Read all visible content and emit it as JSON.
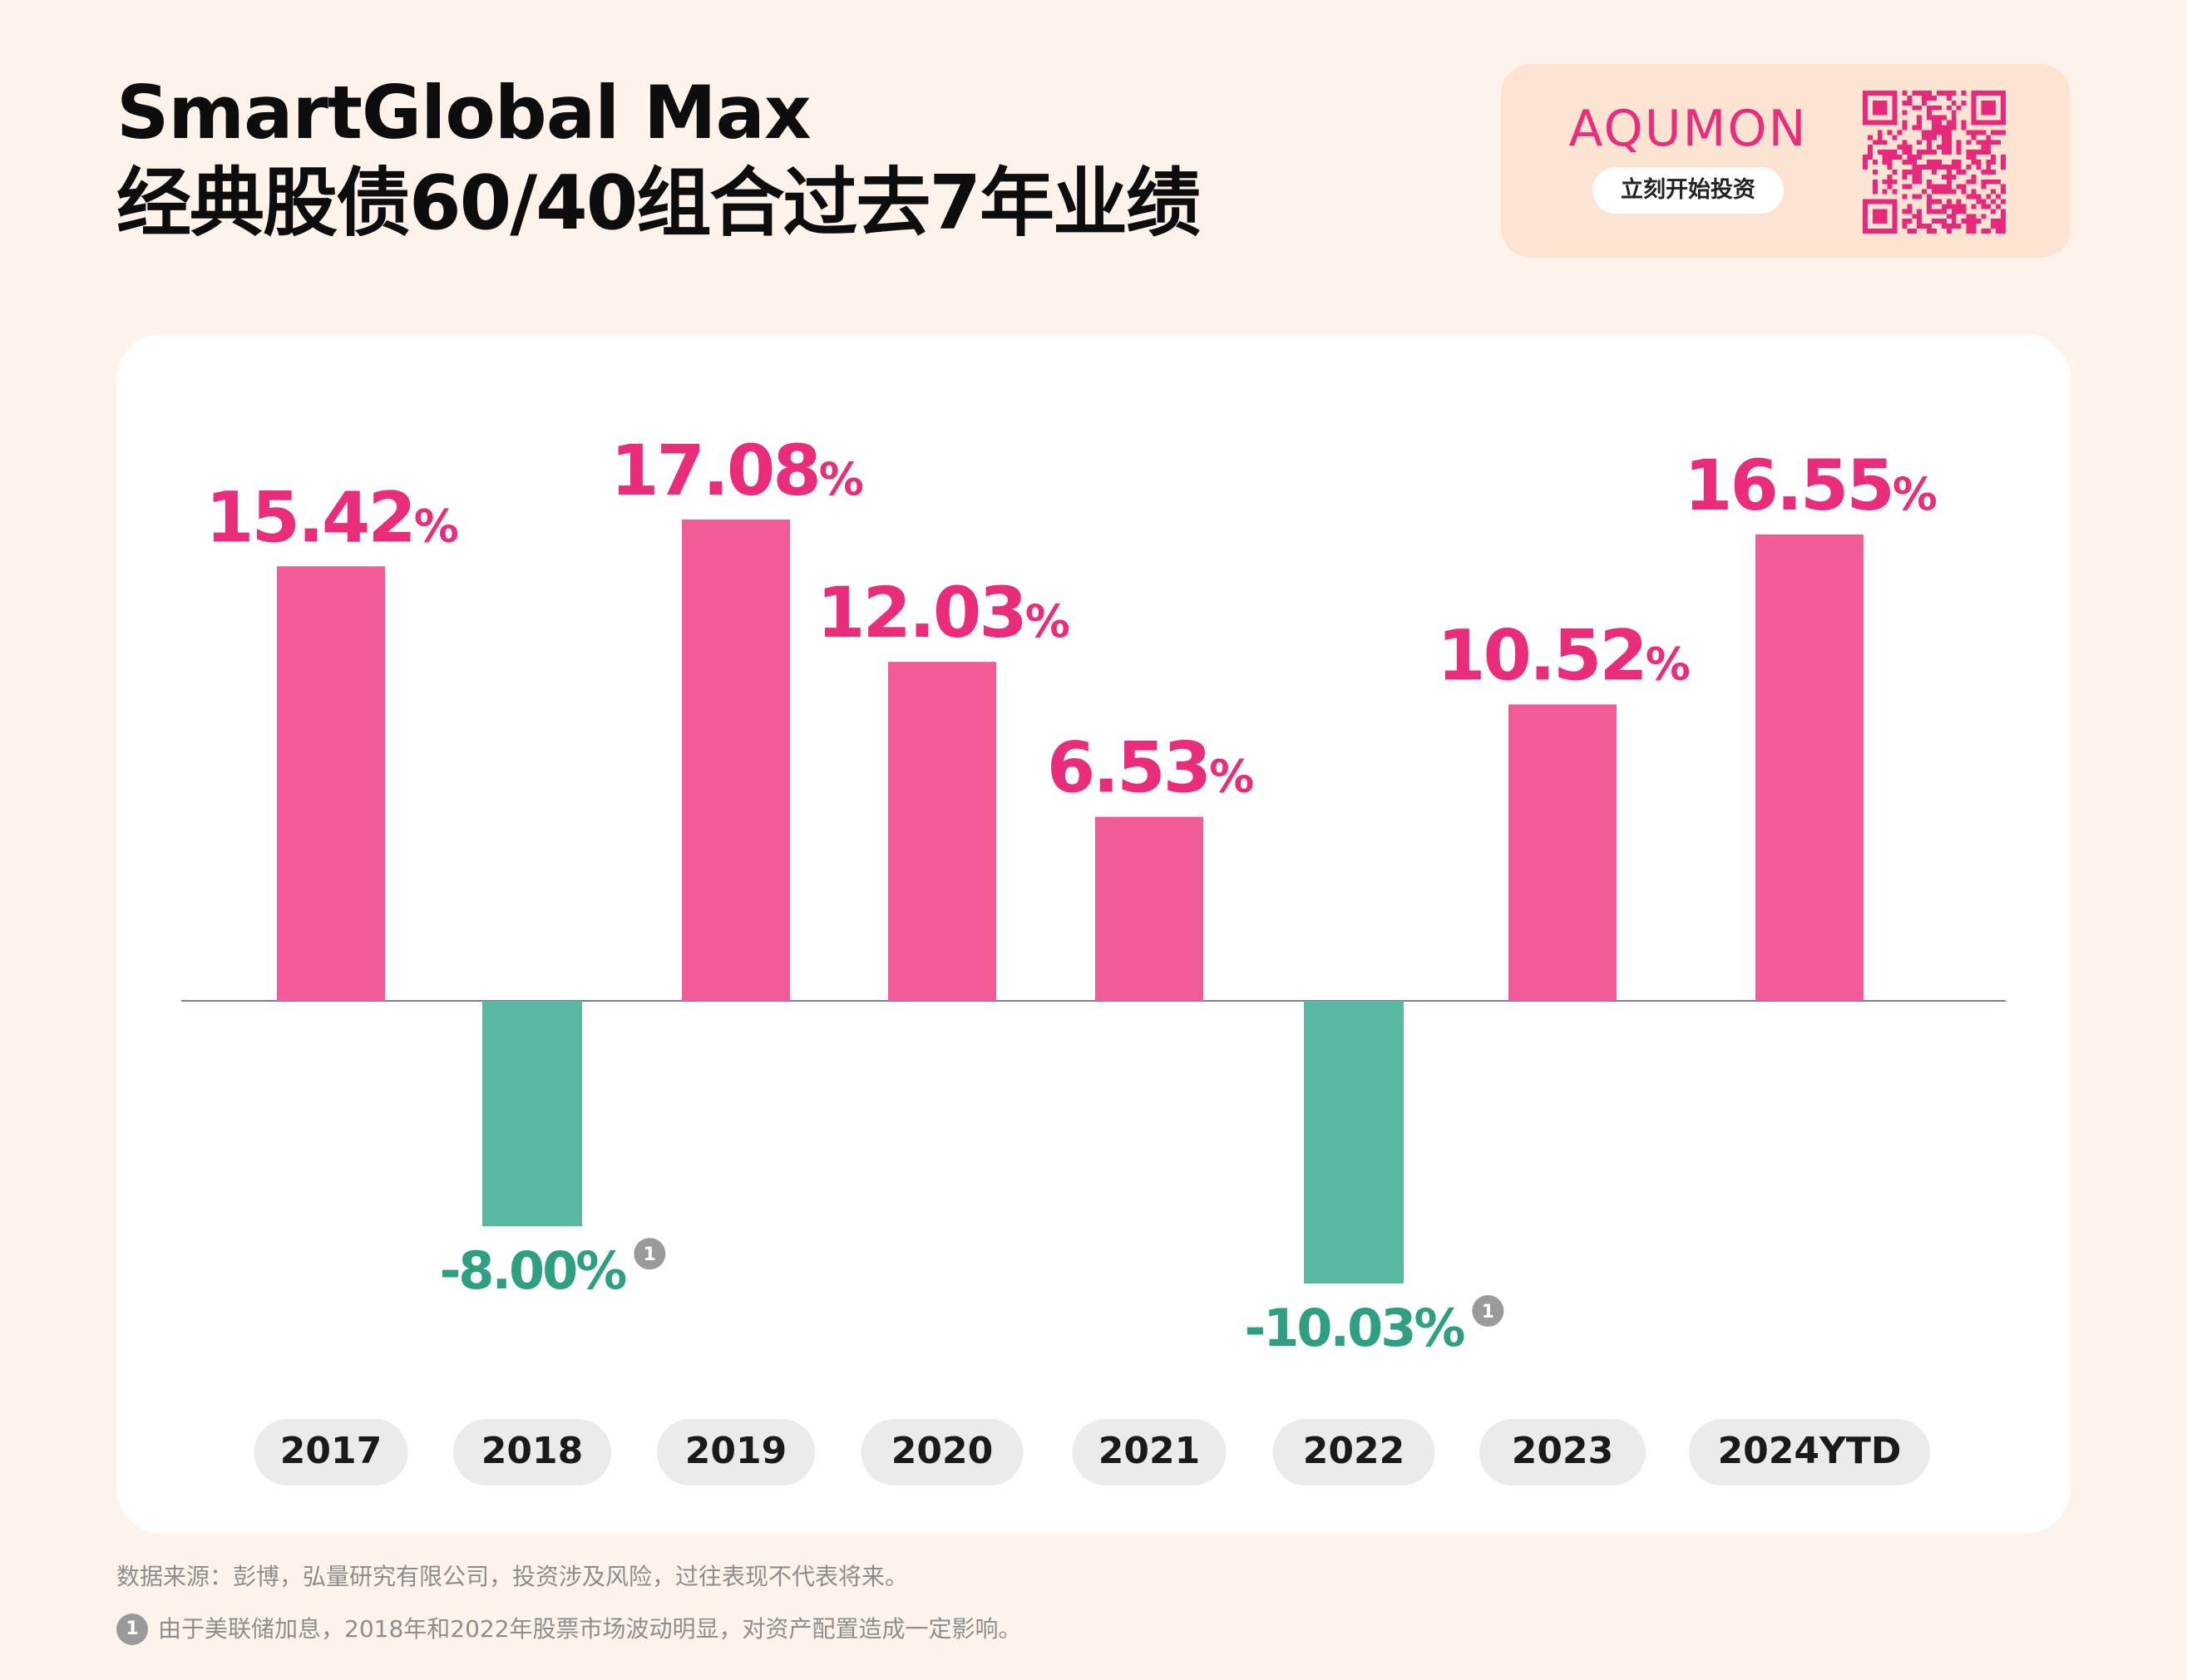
{
  "header": {
    "title_line1": "SmartGlobal Max",
    "title_line2": "经典股债60/40组合过去7年业绩"
  },
  "brand": {
    "logo": "AQUMON",
    "cta": "立刻开始投资",
    "qr_icon": "qr-code-icon"
  },
  "colors": {
    "positive": "#f25c96",
    "positive_label": "#ea2d7b",
    "negative": "#5ab8a0",
    "negative_label": "#2f9f83",
    "axis": "#7d7aa8",
    "pill": "#ebebeb",
    "pill_text": "#1a1a1a",
    "note_badge": "#9a9a9a"
  },
  "chart_data": {
    "type": "bar",
    "categories": [
      "2017",
      "2018",
      "2019",
      "2020",
      "2021",
      "2022",
      "2023",
      "2024YTD"
    ],
    "values": [
      15.42,
      -8.0,
      17.08,
      12.03,
      6.53,
      -10.03,
      10.52,
      16.55
    ],
    "labels": [
      "15.42",
      "-8.00",
      "17.08",
      "12.03",
      "6.53",
      "-10.03",
      "10.52",
      "16.55"
    ],
    "unit": "%",
    "footnote_marker": "1",
    "footnote_on": [
      "2018",
      "2022"
    ],
    "title": "",
    "xlabel": "",
    "ylabel": "",
    "grid": false,
    "legend": "none"
  },
  "footer": {
    "source": "数据来源：彭博，弘量研究有限公司，投资涉及风险，过往表现不代表将来。",
    "note_marker": "1",
    "note": "由于美联储加息，2018年和2022年股票市场波动明显，对资产配置造成一定影响。"
  }
}
